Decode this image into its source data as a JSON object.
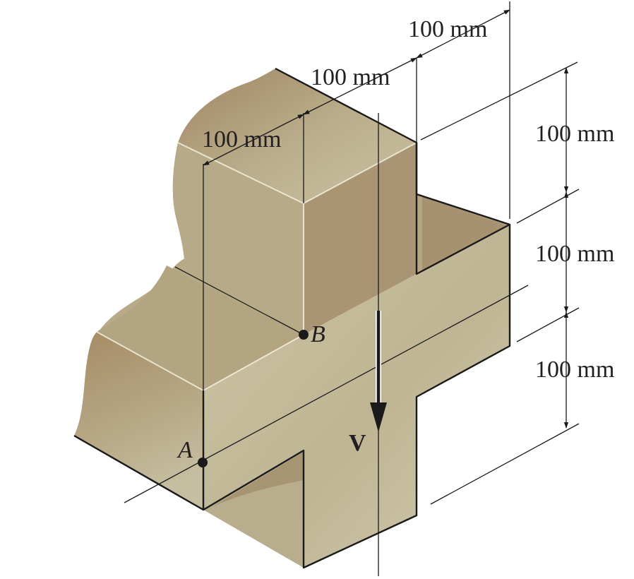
{
  "figure": {
    "dimensions": {
      "top_width": "100 mm",
      "right_offset": "100 mm",
      "left_width": "100 mm",
      "height_upper": "100 mm",
      "height_middle": "100 mm",
      "height_lower": "100 mm"
    },
    "points": {
      "a": "A",
      "b": "B"
    },
    "force": {
      "label": "V"
    },
    "colors": {
      "light": "#cdc7a4",
      "mid": "#b9ad8c",
      "dark": "#a58b64",
      "edge": "#1a1a1a"
    }
  }
}
